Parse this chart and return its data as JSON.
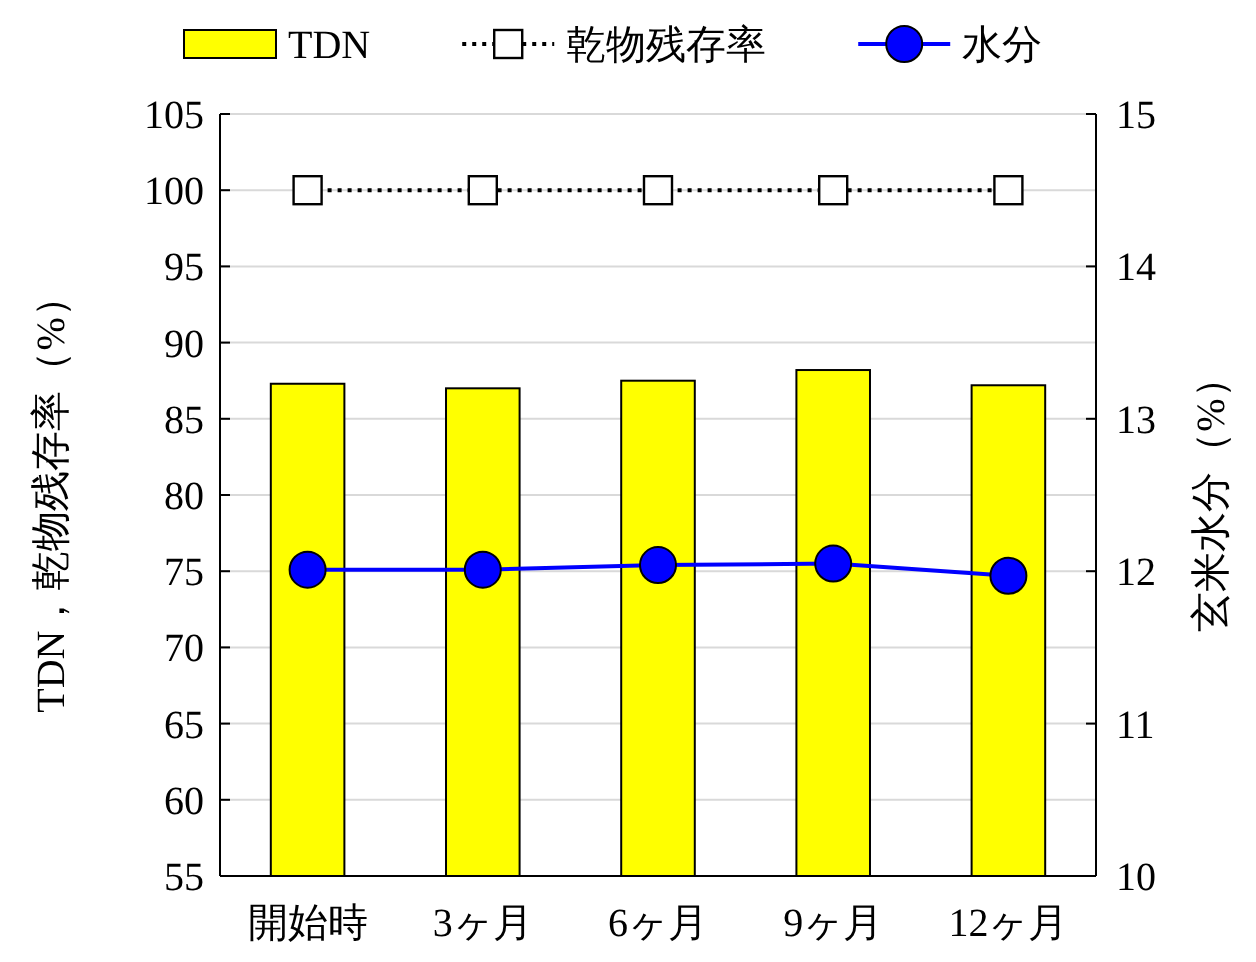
{
  "chart_data": {
    "type": "bar",
    "categories": [
      "開始時",
      "3ヶ月",
      "6ヶ月",
      "9ヶ月",
      "12ヶ月"
    ],
    "series": [
      {
        "name": "TDN",
        "color": "#ffff00",
        "values": [
          87.3,
          87.0,
          87.5,
          88.2,
          87.2
        ]
      },
      {
        "name": "乾物残存率",
        "type": "line",
        "color": "#000000",
        "marker": "square",
        "line_style": "dotted",
        "values": [
          100,
          100,
          100,
          100,
          100
        ]
      },
      {
        "name": "水分",
        "type": "line",
        "axis": "y2",
        "color": "#0000ff",
        "marker": "circle",
        "line_style": "solid",
        "values": [
          12.01,
          12.01,
          12.04,
          12.05,
          11.97
        ]
      }
    ],
    "ylabel": "TDN，乾物残存率（%）",
    "y2label": "玄米水分（%）",
    "ylim": [
      55,
      105
    ],
    "yticks": [
      55,
      60,
      65,
      70,
      75,
      80,
      85,
      90,
      95,
      100,
      105
    ],
    "y2lim": [
      10,
      15
    ],
    "y2ticks": [
      10,
      11,
      12,
      13,
      14,
      15
    ],
    "grid": "y",
    "legend": "top"
  }
}
